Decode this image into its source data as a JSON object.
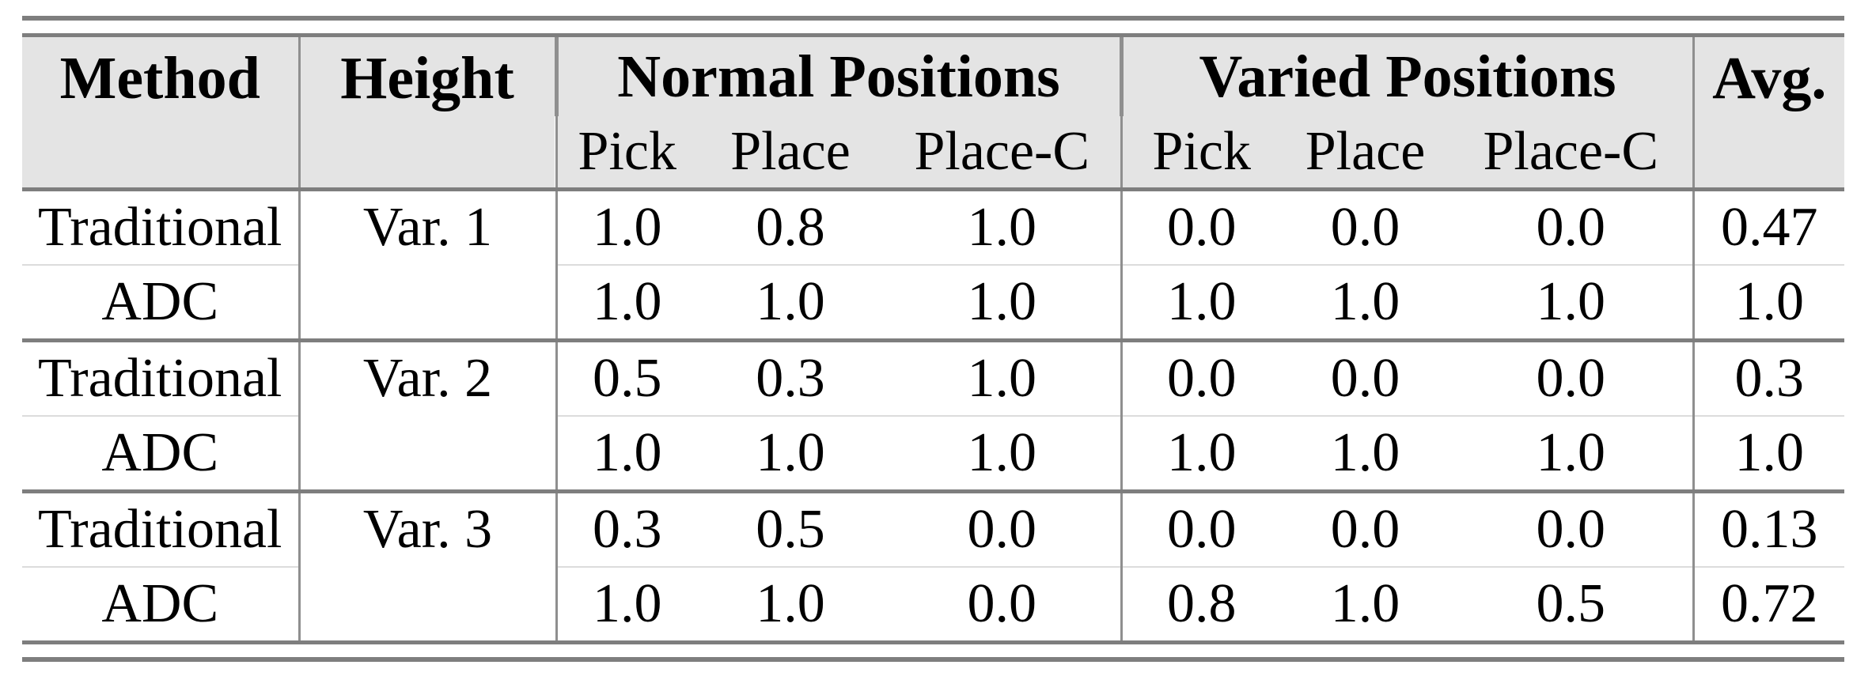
{
  "colors": {
    "page_background": "#ffffff",
    "header_background": "#e4e4e4",
    "highlight_background": "#fbf6bf",
    "rule_color": "#7e7e7e",
    "grid_line_color": "#8f8f8f",
    "faint_row_line_color": "#dcdcdc",
    "text_color": "#000000"
  },
  "table": {
    "header": {
      "method": "Method",
      "height": "Height",
      "group_normal": "Normal Positions",
      "group_varied": "Varied Positions",
      "avg": "Avg.",
      "sub_normal": [
        "Pick",
        "Place",
        "Place-C"
      ],
      "sub_varied": [
        "Pick",
        "Place",
        "Place-C"
      ],
      "highlighted_subcolumn": "Place-C"
    },
    "rows": [
      {
        "method": "Traditional",
        "height": "Var. 1",
        "values": [
          "1.0",
          "0.8",
          "1.0",
          "0.0",
          "0.0",
          "0.0"
        ],
        "avg": "0.47"
      },
      {
        "method": "ADC",
        "values": [
          "1.0",
          "1.0",
          "1.0",
          "1.0",
          "1.0",
          "1.0"
        ],
        "avg": "1.0"
      },
      {
        "method": "Traditional",
        "height": "Var. 2",
        "values": [
          "0.5",
          "0.3",
          "1.0",
          "0.0",
          "0.0",
          "0.0"
        ],
        "avg": "0.3"
      },
      {
        "method": "ADC",
        "values": [
          "1.0",
          "1.0",
          "1.0",
          "1.0",
          "1.0",
          "1.0"
        ],
        "avg": "1.0"
      },
      {
        "method": "Traditional",
        "height": "Var. 3",
        "values": [
          "0.3",
          "0.5",
          "0.0",
          "0.0",
          "0.0",
          "0.0"
        ],
        "avg": "0.13"
      },
      {
        "method": "ADC",
        "values": [
          "1.0",
          "1.0",
          "0.0",
          "0.8",
          "1.0",
          "0.5"
        ],
        "avg": "0.72"
      }
    ]
  }
}
